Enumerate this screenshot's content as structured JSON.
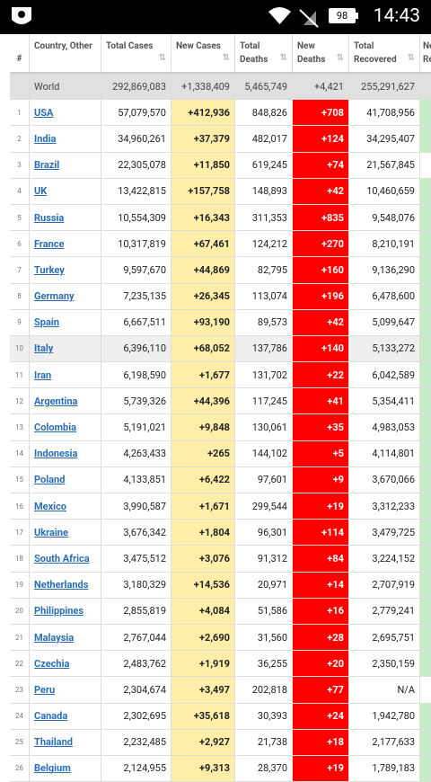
{
  "status_bar": {
    "battery": "98",
    "time": "14:43"
  },
  "table": {
    "columns": [
      "#",
      "Country, Other",
      "Total Cases",
      "New Cases",
      "Total Deaths",
      "New Deaths",
      "Total Recovered",
      "New Recovered"
    ],
    "world": [
      "World",
      "292,869,083",
      "+1,338,409",
      "5,465,749",
      "+4,421",
      "255,291,627"
    ],
    "rows": [
      [
        "1",
        "USA",
        "57,079,570",
        "+412,936",
        "848,826",
        "+708",
        "41,708,956"
      ],
      [
        "2",
        "India",
        "34,960,261",
        "+37,379",
        "482,017",
        "+124",
        "34,295,407"
      ],
      [
        "3",
        "Brazil",
        "22,305,078",
        "+11,850",
        "619,245",
        "+74",
        "21,567,845"
      ],
      [
        "4",
        "UK",
        "13,422,815",
        "+157,758",
        "148,893",
        "+42",
        "10,460,659"
      ],
      [
        "5",
        "Russia",
        "10,554,309",
        "+16,343",
        "311,353",
        "+835",
        "9,548,076"
      ],
      [
        "6",
        "France",
        "10,317,819",
        "+67,461",
        "124,212",
        "+270",
        "8,210,191"
      ],
      [
        "7",
        "Turkey",
        "9,597,670",
        "+44,869",
        "82,795",
        "+160",
        "9,136,290"
      ],
      [
        "8",
        "Germany",
        "7,235,135",
        "+26,345",
        "113,074",
        "+196",
        "6,478,600"
      ],
      [
        "9",
        "Spain",
        "6,667,511",
        "+93,190",
        "89,573",
        "+42",
        "5,099,647"
      ],
      [
        "10",
        "Italy",
        "6,396,110",
        "+68,052",
        "137,786",
        "+140",
        "5,133,272"
      ],
      [
        "11",
        "Iran",
        "6,198,590",
        "+1,677",
        "131,702",
        "+22",
        "6,042,589"
      ],
      [
        "12",
        "Argentina",
        "5,739,326",
        "+44,396",
        "117,245",
        "+41",
        "5,354,411"
      ],
      [
        "13",
        "Colombia",
        "5,191,021",
        "+9,848",
        "130,061",
        "+35",
        "4,983,053"
      ],
      [
        "14",
        "Indonesia",
        "4,263,433",
        "+265",
        "144,102",
        "+5",
        "4,114,801"
      ],
      [
        "15",
        "Poland",
        "4,133,851",
        "+6,422",
        "97,601",
        "+9",
        "3,670,066"
      ],
      [
        "16",
        "Mexico",
        "3,990,587",
        "+1,671",
        "299,544",
        "+19",
        "3,312,233"
      ],
      [
        "17",
        "Ukraine",
        "3,676,342",
        "+1,804",
        "96,301",
        "+114",
        "3,479,725"
      ],
      [
        "18",
        "South Africa",
        "3,475,512",
        "+3,076",
        "91,312",
        "+84",
        "3,224,152"
      ],
      [
        "19",
        "Netherlands",
        "3,180,329",
        "+14,536",
        "20,971",
        "+14",
        "2,707,919"
      ],
      [
        "20",
        "Philippines",
        "2,855,819",
        "+4,084",
        "51,586",
        "+16",
        "2,779,241"
      ],
      [
        "21",
        "Malaysia",
        "2,767,044",
        "+2,690",
        "31,560",
        "+28",
        "2,695,751"
      ],
      [
        "22",
        "Czechia",
        "2,483,762",
        "+1,919",
        "36,255",
        "+20",
        "2,350,159"
      ],
      [
        "23",
        "Peru",
        "2,304,674",
        "+3,497",
        "202,818",
        "+77",
        "N/A"
      ],
      [
        "24",
        "Canada",
        "2,302,695",
        "+35,618",
        "30,393",
        "+24",
        "1,942,780"
      ],
      [
        "25",
        "Thailand",
        "2,232,485",
        "+2,927",
        "21,738",
        "+18",
        "2,177,633"
      ],
      [
        "26",
        "Belgium",
        "2,124,955",
        "+9,313",
        "28,370",
        "+19",
        "1,789,183"
      ]
    ]
  }
}
